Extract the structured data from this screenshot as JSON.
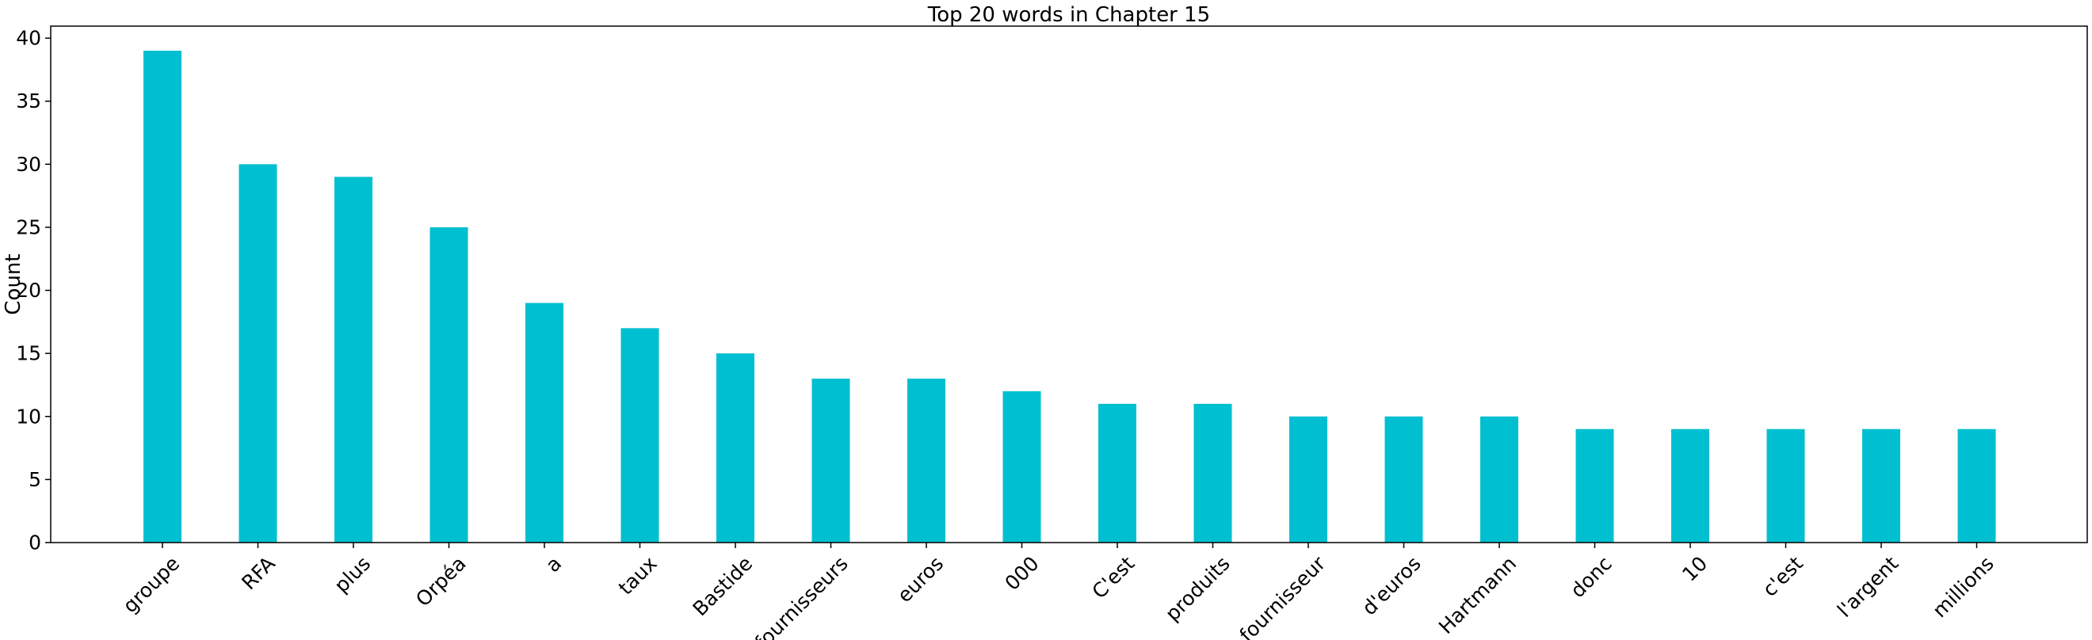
{
  "chart_data": {
    "type": "bar",
    "title": "Top 20 words in Chapter 15",
    "xlabel": "",
    "ylabel": "Count",
    "categories": [
      "groupe",
      "RFA",
      "plus",
      "Orpéa",
      "a",
      "taux",
      "Bastide",
      "fournisseurs",
      "euros",
      "000",
      "C'est",
      "produits",
      "fournisseur",
      "d'euros",
      "Hartmann",
      "donc",
      "10",
      "c'est",
      "l'argent",
      "millions"
    ],
    "values": [
      39,
      30,
      29,
      25,
      19,
      17,
      15,
      13,
      13,
      12,
      11,
      11,
      10,
      10,
      10,
      9,
      9,
      9,
      9,
      9
    ],
    "ylim": [
      0,
      40.95
    ],
    "yticks": [
      0,
      5,
      10,
      15,
      20,
      25,
      30,
      35,
      40
    ],
    "bar_color": "#00bfd0",
    "grid": false,
    "legend": "none",
    "xtick_rotation_deg": 45
  }
}
